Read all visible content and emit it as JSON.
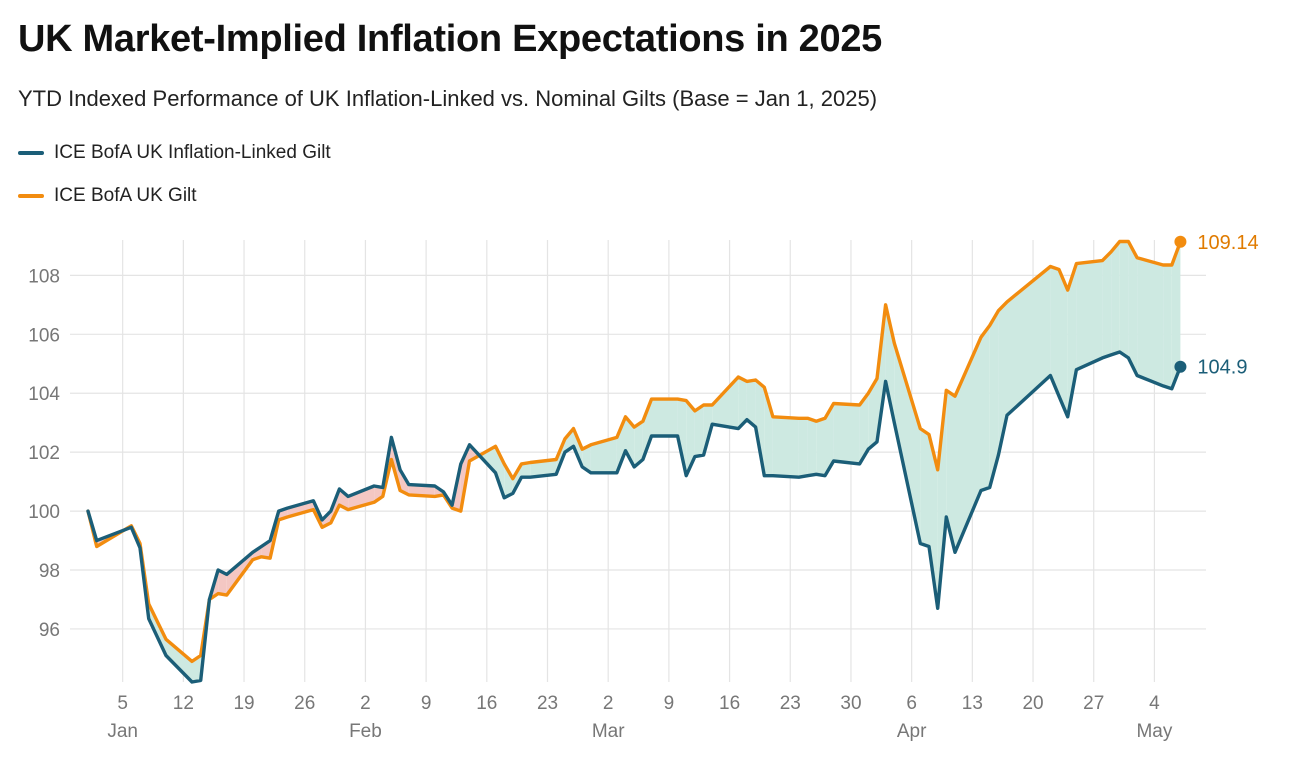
{
  "title": "UK Market-Implied Inflation Expectations in 2025",
  "subtitle": "YTD Indexed Performance of UK Inflation-Linked vs. Nominal Gilts (Base = Jan 1, 2025)",
  "chart_data": {
    "type": "line",
    "title": "UK Market-Implied Inflation Expectations in 2025",
    "subtitle": "YTD Indexed Performance of UK Inflation-Linked vs. Nominal Gilts (Base = Jan 1, 2025)",
    "xlabel": "",
    "ylabel": "",
    "ylim": [
      94.2,
      109.2
    ],
    "yticks": [
      96,
      98,
      100,
      102,
      104,
      106,
      108
    ],
    "grid": true,
    "legend_position": "top-left",
    "fill_between": {
      "linker_above_color": "#f4c7c3",
      "gilt_above_color": "#cde9e1"
    },
    "x_ticks": [
      {
        "x": "2025-01-05",
        "label": "5",
        "month": "Jan"
      },
      {
        "x": "2025-01-12",
        "label": "12",
        "month": ""
      },
      {
        "x": "2025-01-19",
        "label": "19",
        "month": ""
      },
      {
        "x": "2025-01-26",
        "label": "26",
        "month": ""
      },
      {
        "x": "2025-02-02",
        "label": "2",
        "month": "Feb"
      },
      {
        "x": "2025-02-09",
        "label": "9",
        "month": ""
      },
      {
        "x": "2025-02-16",
        "label": "16",
        "month": ""
      },
      {
        "x": "2025-02-23",
        "label": "23",
        "month": ""
      },
      {
        "x": "2025-03-02",
        "label": "2",
        "month": "Mar"
      },
      {
        "x": "2025-03-09",
        "label": "9",
        "month": ""
      },
      {
        "x": "2025-03-16",
        "label": "16",
        "month": ""
      },
      {
        "x": "2025-03-23",
        "label": "23",
        "month": ""
      },
      {
        "x": "2025-03-30",
        "label": "30",
        "month": ""
      },
      {
        "x": "2025-04-06",
        "label": "6",
        "month": "Apr"
      },
      {
        "x": "2025-04-13",
        "label": "13",
        "month": ""
      },
      {
        "x": "2025-04-20",
        "label": "20",
        "month": ""
      },
      {
        "x": "2025-04-27",
        "label": "27",
        "month": ""
      },
      {
        "x": "2025-05-04",
        "label": "4",
        "month": "May"
      }
    ],
    "x": [
      "2025-01-01",
      "2025-01-02",
      "2025-01-06",
      "2025-01-07",
      "2025-01-08",
      "2025-01-10",
      "2025-01-13",
      "2025-01-14",
      "2025-01-15",
      "2025-01-16",
      "2025-01-17",
      "2025-01-20",
      "2025-01-21",
      "2025-01-22",
      "2025-01-23",
      "2025-01-24",
      "2025-01-27",
      "2025-01-28",
      "2025-01-29",
      "2025-01-30",
      "2025-01-31",
      "2025-02-03",
      "2025-02-04",
      "2025-02-05",
      "2025-02-06",
      "2025-02-07",
      "2025-02-10",
      "2025-02-11",
      "2025-02-12",
      "2025-02-13",
      "2025-02-14",
      "2025-02-17",
      "2025-02-18",
      "2025-02-19",
      "2025-02-20",
      "2025-02-21",
      "2025-02-24",
      "2025-02-25",
      "2025-02-26",
      "2025-02-27",
      "2025-02-28",
      "2025-03-03",
      "2025-03-04",
      "2025-03-05",
      "2025-03-06",
      "2025-03-07",
      "2025-03-10",
      "2025-03-11",
      "2025-03-12",
      "2025-03-13",
      "2025-03-14",
      "2025-03-17",
      "2025-03-18",
      "2025-03-19",
      "2025-03-20",
      "2025-03-21",
      "2025-03-24",
      "2025-03-25",
      "2025-03-26",
      "2025-03-27",
      "2025-03-28",
      "2025-03-31",
      "2025-04-01",
      "2025-04-02",
      "2025-04-03",
      "2025-04-04",
      "2025-04-07",
      "2025-04-08",
      "2025-04-09",
      "2025-04-10",
      "2025-04-11",
      "2025-04-14",
      "2025-04-15",
      "2025-04-16",
      "2025-04-17",
      "2025-04-22",
      "2025-04-23",
      "2025-04-24",
      "2025-04-25",
      "2025-04-28",
      "2025-04-29",
      "2025-04-30",
      "2025-05-01",
      "2025-05-02",
      "2025-05-05",
      "2025-05-06",
      "2025-05-07"
    ],
    "series": [
      {
        "name": "ICE BofA UK Inflation-Linked Gilt",
        "color": "#1b5e78",
        "values": [
          100.0,
          99.0,
          99.45,
          98.75,
          96.35,
          95.1,
          94.2,
          94.25,
          97.0,
          98.0,
          97.85,
          98.6,
          98.8,
          99.0,
          100.0,
          100.1,
          100.35,
          99.7,
          100.0,
          100.75,
          100.5,
          100.85,
          100.8,
          102.5,
          101.4,
          100.9,
          100.85,
          100.65,
          100.2,
          101.6,
          102.25,
          101.3,
          100.45,
          100.6,
          101.15,
          101.15,
          101.25,
          102.0,
          102.2,
          101.5,
          101.3,
          101.3,
          102.05,
          101.5,
          101.75,
          102.55,
          102.55,
          101.2,
          101.85,
          101.9,
          102.95,
          102.8,
          103.1,
          102.85,
          101.2,
          101.2,
          101.15,
          101.2,
          101.25,
          101.2,
          101.7,
          101.6,
          102.1,
          102.35,
          104.4,
          103.0,
          98.9,
          98.8,
          96.7,
          99.8,
          98.6,
          100.7,
          100.8,
          101.9,
          103.25,
          104.6,
          103.9,
          103.2,
          104.8,
          105.2,
          105.3,
          105.4,
          105.2,
          104.6,
          104.25,
          104.15,
          104.9
        ]
      },
      {
        "name": "ICE BofA UK Gilt",
        "color": "#f28c0f",
        "values": [
          100.0,
          98.8,
          99.5,
          98.9,
          96.85,
          95.65,
          94.9,
          95.1,
          97.0,
          97.2,
          97.15,
          98.35,
          98.45,
          98.4,
          99.7,
          99.8,
          100.05,
          99.45,
          99.6,
          100.2,
          100.05,
          100.3,
          100.5,
          101.75,
          100.7,
          100.55,
          100.5,
          100.55,
          100.1,
          100.0,
          101.7,
          102.2,
          101.6,
          101.1,
          101.6,
          101.65,
          101.75,
          102.45,
          102.8,
          102.1,
          102.25,
          102.5,
          103.2,
          102.85,
          103.05,
          103.8,
          103.8,
          103.75,
          103.4,
          103.6,
          103.6,
          104.55,
          104.4,
          104.45,
          104.2,
          103.2,
          103.15,
          103.15,
          103.05,
          103.15,
          103.65,
          103.6,
          104.0,
          104.5,
          107.0,
          105.7,
          102.8,
          102.6,
          101.4,
          104.1,
          103.9,
          105.9,
          106.3,
          106.8,
          107.1,
          108.3,
          108.2,
          107.5,
          108.4,
          108.5,
          108.8,
          109.15,
          109.15,
          108.6,
          108.35,
          108.35,
          109.14
        ]
      }
    ],
    "end_labels": [
      "109.14",
      "104.9"
    ]
  }
}
